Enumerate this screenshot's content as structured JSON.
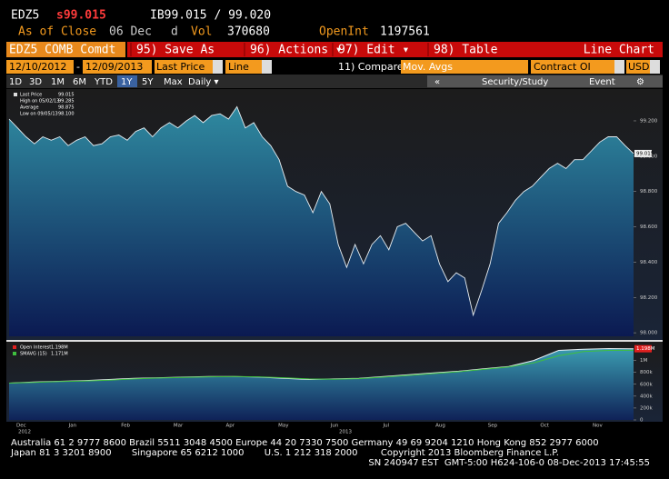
{
  "header": {
    "ticker": "EDZ5",
    "price": "s99.015",
    "bid_ask": "IB99.015 / 99.020",
    "as_of": "As of Close",
    "date": "06 Dec",
    "period": "d",
    "vol_label": "Vol",
    "vol": "370680",
    "oi_label": "OpenInt",
    "oi": "1197561"
  },
  "toolbar": {
    "security": "EDZ5 COMB Comdt",
    "buttons": [
      "95) Save As",
      "96) Actions ▾",
      "97) Edit ▾",
      "98) Table"
    ],
    "view": "Line Chart",
    "start": "12/10/2012",
    "dash": "-",
    "end": "12/09/2013",
    "field": "Last Price",
    "style": "Line",
    "compare": "11) Compare",
    "mov_avgs": "Mov. Avgs",
    "contract": "Contract OI",
    "currency": "USD",
    "periods": [
      "1D",
      "3D",
      "1M",
      "6M",
      "YTD",
      "1Y",
      "5Y",
      "Max",
      "Daily ▾"
    ],
    "right": [
      "«",
      "Security/Study",
      "Event",
      "⚙"
    ]
  },
  "chart_data": [
    {
      "type": "area",
      "stats": [
        {
          "label": "Last Price",
          "value": "99.015"
        },
        {
          "label": "High on 05/02/13",
          "value": "99.285"
        },
        {
          "label": "Average",
          "value": "98.875"
        },
        {
          "label": "Low on 09/05/13",
          "value": "98.100"
        }
      ],
      "series": [
        {
          "color": "#2f8aa0",
          "values": [
            99.21,
            99.16,
            99.11,
            99.07,
            99.11,
            99.09,
            99.11,
            99.06,
            99.09,
            99.11,
            99.06,
            99.07,
            99.11,
            99.12,
            99.09,
            99.14,
            99.16,
            99.11,
            99.16,
            99.19,
            99.16,
            99.2,
            99.23,
            99.19,
            99.23,
            99.24,
            99.21,
            99.28,
            99.16,
            99.19,
            99.11,
            99.06,
            98.98,
            98.83,
            98.8,
            98.78,
            98.68,
            98.8,
            98.73,
            98.5,
            98.37,
            98.5,
            98.39,
            98.5,
            98.55,
            98.47,
            98.6,
            98.62,
            98.57,
            98.52,
            98.55,
            98.39,
            98.29,
            98.34,
            98.31,
            98.1,
            98.24,
            98.39,
            98.62,
            98.68,
            98.75,
            98.8,
            98.83,
            98.88,
            98.93,
            98.96,
            98.93,
            98.98,
            98.98,
            99.03,
            99.08,
            99.11,
            99.11,
            99.06,
            99.015
          ]
        }
      ],
      "ylim": [
        97.98,
        99.38
      ],
      "yticks": [
        {
          "value": 98,
          "label": "98.000"
        },
        {
          "value": 98.2,
          "label": "98.200"
        },
        {
          "value": 98.4,
          "label": "98.400"
        },
        {
          "value": 98.6,
          "label": "98.600"
        },
        {
          "value": 98.8,
          "label": "98.800"
        },
        {
          "value": 99,
          "label": "99.000"
        },
        {
          "value": 99.2,
          "label": "99.200"
        }
      ]
    },
    {
      "type": "area",
      "series": [
        {
          "name": "Open Interest",
          "color": "#e0201f",
          "values": [
            620000,
            640000,
            650000,
            660000,
            680000,
            700000,
            710000,
            720000,
            730000,
            730000,
            720000,
            700000,
            680000,
            690000,
            700000,
            730000,
            760000,
            790000,
            820000,
            860000,
            900000,
            1000000,
            1170000,
            1190000,
            1200000,
            1198000
          ]
        },
        {
          "name": "SMAVG (15)",
          "color": "#3fbf3f",
          "values": [
            620000,
            630000,
            645000,
            655000,
            670000,
            690000,
            705000,
            715000,
            725000,
            730000,
            725000,
            710000,
            690000,
            685000,
            695000,
            720000,
            750000,
            780000,
            810000,
            850000,
            890000,
            960000,
            1080000,
            1150000,
            1170000,
            1171000
          ]
        }
      ],
      "legend_values": [
        "1.198M",
        "1.171M"
      ],
      "ylim": [
        0,
        1300000
      ],
      "yticks": [
        {
          "value": 0,
          "label": "0"
        },
        {
          "value": 200000,
          "label": "200k"
        },
        {
          "value": 400000,
          "label": "400k"
        },
        {
          "value": 600000,
          "label": "600k"
        },
        {
          "value": 800000,
          "label": "800k"
        },
        {
          "value": 1000000,
          "label": "1M"
        }
      ],
      "months": [
        "Dec",
        "Jan",
        "Feb",
        "Mar",
        "Apr",
        "May",
        "Jun",
        "Jul",
        "Aug",
        "Sep",
        "Oct",
        "Nov"
      ],
      "years": [
        "2012",
        "2013"
      ]
    }
  ],
  "footer": {
    "lines": [
      "Australia 61 2 9777 8600 Brazil 5511 3048 4500 Europe 44 20 7330 7500 Germany 49 69 9204 1210 Hong Kong 852 2977 6000",
      "Japan 81 3 3201 8900       Singapore 65 6212 1000       U.S. 1 212 318 2000        Copyright 2013 Bloomberg Finance L.P.",
      "SN 240947 EST  GMT-5:00 H624-106-0 08-Dec-2013 17:45:55"
    ]
  }
}
